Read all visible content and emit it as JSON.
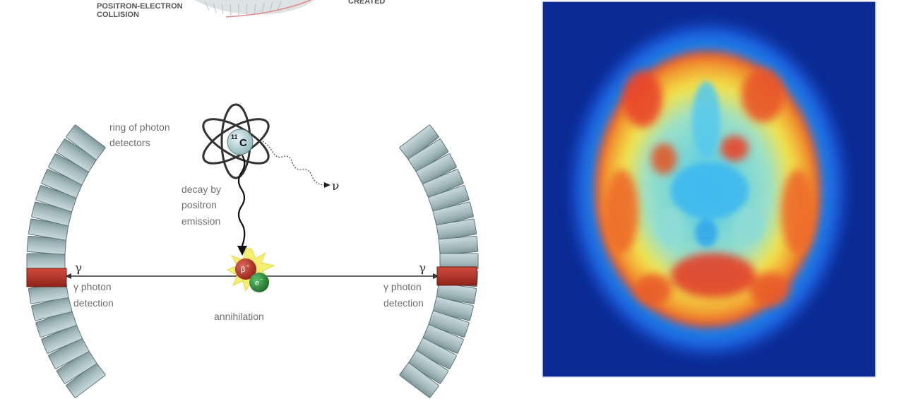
{
  "top_labels": {
    "left_line1": "POSITRON-ELECTRON",
    "left_line2": "COLLISION",
    "right_partial": "CREATED"
  },
  "diagram": {
    "ring_label_line1": "ring of photon",
    "ring_label_line2": "detectors",
    "isotope_mass": "11",
    "isotope_symbol": "C",
    "decay_line1": "decay by",
    "decay_line2": "positron",
    "decay_line3": "emission",
    "neutrino_symbol": "ν",
    "gamma_symbol": "γ",
    "left_detection_line1": "γ photon",
    "left_detection_line2": "detection",
    "right_detection_line1": "γ photon",
    "right_detection_line2": "detection",
    "annihilation_label": "annihilation",
    "positron_symbol": "β",
    "positron_charge": "+",
    "electron_symbol": "e",
    "electron_charge": "−"
  },
  "colors": {
    "detector_block": "#a9bfc3",
    "detector_active": "#b0352a",
    "scan_background": "#0b2a93",
    "positron": "#c0392b",
    "electron": "#2e8b3a",
    "flash": "#f4ee72"
  }
}
